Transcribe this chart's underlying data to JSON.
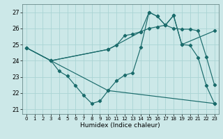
{
  "xlabel": "Humidex (Indice chaleur)",
  "bg_color": "#cce8e8",
  "line_color": "#1a6b6b",
  "grid_color": "#aad4d4",
  "xlim": [
    -0.5,
    23.5
  ],
  "ylim": [
    20.7,
    27.5
  ],
  "yticks": [
    21,
    22,
    23,
    24,
    25,
    26,
    27
  ],
  "xticks": [
    0,
    1,
    2,
    3,
    4,
    5,
    6,
    7,
    8,
    9,
    10,
    11,
    12,
    13,
    14,
    15,
    16,
    17,
    18,
    19,
    20,
    21,
    22,
    23
  ],
  "series": [
    {
      "x": [
        0,
        3,
        10,
        11,
        12,
        13,
        14,
        15,
        16,
        17,
        18,
        19,
        20,
        21,
        22,
        23
      ],
      "y": [
        24.8,
        24.0,
        24.7,
        24.95,
        25.55,
        25.65,
        25.8,
        26.0,
        26.1,
        26.2,
        26.0,
        25.95,
        25.95,
        25.85,
        24.25,
        22.5
      ]
    },
    {
      "x": [
        0,
        3,
        4,
        5,
        6,
        7,
        8,
        9,
        10,
        11,
        12,
        13,
        14,
        15,
        16,
        17,
        18,
        19,
        20,
        21,
        22,
        23
      ],
      "y": [
        24.8,
        24.0,
        23.35,
        23.05,
        22.45,
        21.85,
        21.35,
        21.5,
        22.15,
        22.75,
        23.1,
        23.25,
        24.85,
        27.0,
        26.75,
        26.2,
        26.8,
        25.0,
        24.95,
        24.2,
        22.45,
        21.35
      ]
    },
    {
      "x": [
        0,
        3,
        10,
        23
      ],
      "y": [
        24.8,
        24.0,
        22.15,
        21.35
      ]
    },
    {
      "x": [
        3,
        10,
        14,
        15,
        16,
        17,
        18,
        19,
        23
      ],
      "y": [
        24.0,
        24.7,
        25.8,
        27.0,
        26.75,
        26.2,
        26.8,
        25.0,
        25.85
      ]
    }
  ]
}
